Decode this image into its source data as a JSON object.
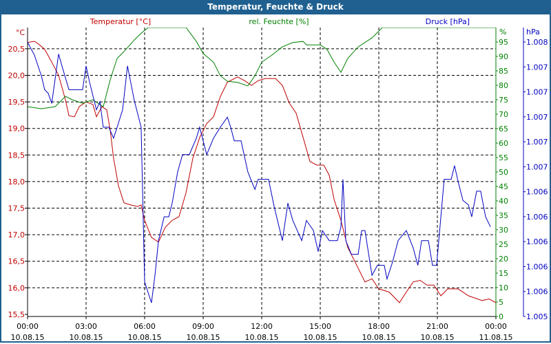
{
  "window_title": "Temperatur, Feuchte & Druck",
  "chart_data": {
    "type": "line",
    "title": "Temperatur, Feuchte & Druck",
    "x_unit": "hours since 10.08.15 00:00",
    "xlim": [
      0,
      24
    ],
    "x_ticks": [
      {
        "h": 0,
        "time": "00:00",
        "date": "10.08.15"
      },
      {
        "h": 3,
        "time": "03:00",
        "date": "10.08.15"
      },
      {
        "h": 6,
        "time": "06:00",
        "date": "10.08.15"
      },
      {
        "h": 9,
        "time": "09:00",
        "date": "10.08.15"
      },
      {
        "h": 12,
        "time": "12:00",
        "date": "10.08.15"
      },
      {
        "h": 15,
        "time": "15:00",
        "date": "10.08.15"
      },
      {
        "h": 18,
        "time": "18:00",
        "date": "10.08.15"
      },
      {
        "h": 21,
        "time": "21:00",
        "date": "10.08.15"
      },
      {
        "h": 24,
        "time": "00:00",
        "date": "11.08.15"
      }
    ],
    "axes": {
      "temperature": {
        "label": "Temperatur [°C]",
        "unit": "°C",
        "color": "#c00000",
        "ylim": [
          15.46,
          20.9
        ],
        "ticks": [
          {
            "v": 20.5,
            "t": "20,5"
          },
          {
            "v": 20,
            "t": "20,0"
          },
          {
            "v": 19.5,
            "t": "19,5"
          },
          {
            "v": 19,
            "t": "19,0"
          },
          {
            "v": 18.5,
            "t": "18,5"
          },
          {
            "v": 18,
            "t": "18,0"
          },
          {
            "v": 17.5,
            "t": "17,5"
          },
          {
            "v": 17,
            "t": "17,0"
          },
          {
            "v": 16.5,
            "t": "16,5"
          },
          {
            "v": 16,
            "t": "16,0"
          },
          {
            "v": 15.5,
            "t": "15,5"
          }
        ]
      },
      "humidity": {
        "label": "rel. Feuchte [%]",
        "unit": "%",
        "color": "#008000",
        "ylim": [
          0,
          100
        ],
        "ticks": [
          "0",
          "5",
          "10",
          "15",
          "20",
          "25",
          "30",
          "35",
          "40",
          "45",
          "50",
          "55",
          "60",
          "65",
          "70",
          "75",
          "80",
          "85",
          "90",
          "95"
        ]
      },
      "pressure": {
        "label": "Druck [hPa]",
        "unit": "hPa",
        "color": "#0000c0",
        "ylim": [
          1005,
          1008.16
        ],
        "ticks": [
          "1.005",
          "1.006",
          "1.006",
          "1.006",
          "1.006",
          "1.006",
          "1.007",
          "1.007",
          "1.007",
          "1.007",
          "1.007",
          "1.008"
        ]
      }
    },
    "grid": true,
    "series": [
      {
        "name": "Temperatur",
        "axis": "temperature",
        "color": "#c00000",
        "points": [
          [
            0,
            20.62
          ],
          [
            0.35,
            20.64
          ],
          [
            0.53,
            20.6
          ],
          [
            0.88,
            20.49
          ],
          [
            1.24,
            20.25
          ],
          [
            1.59,
            20.0
          ],
          [
            1.94,
            19.54
          ],
          [
            2.12,
            19.24
          ],
          [
            2.4,
            19.22
          ],
          [
            2.65,
            19.41
          ],
          [
            3,
            19.5
          ],
          [
            3.35,
            19.45
          ],
          [
            3.53,
            19.22
          ],
          [
            3.81,
            19.41
          ],
          [
            4.06,
            19.35
          ],
          [
            4.24,
            18.96
          ],
          [
            4.41,
            18.44
          ],
          [
            4.66,
            17.92
          ],
          [
            4.94,
            17.6
          ],
          [
            5.29,
            17.56
          ],
          [
            5.65,
            17.53
          ],
          [
            5.82,
            17.56
          ],
          [
            6,
            17.27
          ],
          [
            6.35,
            16.95
          ],
          [
            6.71,
            16.86
          ],
          [
            7.06,
            17.14
          ],
          [
            7.41,
            17.27
          ],
          [
            7.76,
            17.34
          ],
          [
            8.12,
            17.79
          ],
          [
            8.47,
            18.44
          ],
          [
            8.82,
            18.83
          ],
          [
            9.18,
            19.09
          ],
          [
            9.53,
            19.22
          ],
          [
            9.88,
            19.6
          ],
          [
            10.24,
            19.87
          ],
          [
            10.76,
            19.97
          ],
          [
            11.12,
            19.9
          ],
          [
            11.47,
            19.81
          ],
          [
            11.82,
            19.9
          ],
          [
            12.18,
            19.94
          ],
          [
            12.71,
            19.94
          ],
          [
            13.06,
            19.81
          ],
          [
            13.41,
            19.48
          ],
          [
            13.76,
            19.29
          ],
          [
            14.12,
            18.83
          ],
          [
            14.47,
            18.38
          ],
          [
            14.82,
            18.31
          ],
          [
            15.18,
            18.31
          ],
          [
            15.46,
            18.12
          ],
          [
            15.71,
            17.66
          ],
          [
            16.06,
            17.27
          ],
          [
            16.41,
            16.76
          ],
          [
            16.94,
            16.37
          ],
          [
            17.29,
            16.11
          ],
          [
            17.65,
            16.17
          ],
          [
            18,
            15.98
          ],
          [
            18.53,
            15.92
          ],
          [
            19.06,
            15.72
          ],
          [
            19.41,
            15.92
          ],
          [
            19.76,
            16.11
          ],
          [
            20.12,
            16.14
          ],
          [
            20.47,
            16.05
          ],
          [
            20.82,
            16.05
          ],
          [
            21.18,
            15.85
          ],
          [
            21.53,
            15.98
          ],
          [
            22.06,
            15.98
          ],
          [
            22.59,
            15.85
          ],
          [
            23.29,
            15.76
          ],
          [
            23.65,
            15.79
          ],
          [
            24,
            15.72
          ]
        ]
      },
      {
        "name": "rel. Feuchte",
        "axis": "humidity",
        "color": "#008000",
        "points": [
          [
            0,
            72.6
          ],
          [
            0.71,
            71.9
          ],
          [
            1.41,
            72.6
          ],
          [
            1.94,
            76.2
          ],
          [
            2.29,
            75
          ],
          [
            2.82,
            73.8
          ],
          [
            3.35,
            75
          ],
          [
            3.88,
            72.6
          ],
          [
            4.24,
            82
          ],
          [
            4.59,
            89.3
          ],
          [
            4.94,
            91.7
          ],
          [
            5.47,
            95.7
          ],
          [
            5.82,
            98
          ],
          [
            6.18,
            100
          ],
          [
            8.12,
            100
          ],
          [
            8.65,
            95.2
          ],
          [
            9,
            91
          ],
          [
            9.53,
            88
          ],
          [
            9.88,
            83.3
          ],
          [
            10.24,
            81.4
          ],
          [
            10.76,
            81
          ],
          [
            11.29,
            79.8
          ],
          [
            11.65,
            83.3
          ],
          [
            12,
            88
          ],
          [
            12.53,
            90.5
          ],
          [
            13.06,
            93.3
          ],
          [
            13.59,
            94.8
          ],
          [
            14.12,
            95.2
          ],
          [
            14.29,
            94
          ],
          [
            15,
            94
          ],
          [
            15.35,
            92.4
          ],
          [
            15.71,
            88
          ],
          [
            16.06,
            84.5
          ],
          [
            16.41,
            89.3
          ],
          [
            16.94,
            93.3
          ],
          [
            17.65,
            96.4
          ],
          [
            18.18,
            100
          ],
          [
            24,
            100
          ]
        ]
      },
      {
        "name": "Druck",
        "axis": "pressure",
        "color": "#0000c0",
        "points": [
          [
            0,
            1008.0
          ],
          [
            0.35,
            1007.86
          ],
          [
            0.71,
            1007.63
          ],
          [
            0.88,
            1007.48
          ],
          [
            1.06,
            1007.44
          ],
          [
            1.24,
            1007.33
          ],
          [
            1.59,
            1007.87
          ],
          [
            1.76,
            1007.74
          ],
          [
            2.12,
            1007.48
          ],
          [
            2.82,
            1007.48
          ],
          [
            3,
            1007.74
          ],
          [
            3.18,
            1007.56
          ],
          [
            3.53,
            1007.26
          ],
          [
            3.71,
            1007.35
          ],
          [
            3.88,
            1007.07
          ],
          [
            4.16,
            1007.07
          ],
          [
            4.41,
            1006.95
          ],
          [
            4.59,
            1007.07
          ],
          [
            4.87,
            1007.26
          ],
          [
            5.12,
            1007.74
          ],
          [
            5.47,
            1007.36
          ],
          [
            5.82,
            1007.07
          ],
          [
            6,
            1005.38
          ],
          [
            6.18,
            1005.26
          ],
          [
            6.35,
            1005.15
          ],
          [
            6.53,
            1005.45
          ],
          [
            6.71,
            1005.83
          ],
          [
            7,
            1006.09
          ],
          [
            7.24,
            1006.09
          ],
          [
            7.41,
            1006.24
          ],
          [
            7.69,
            1006.58
          ],
          [
            7.94,
            1006.77
          ],
          [
            8.29,
            1006.77
          ],
          [
            8.65,
            1006.95
          ],
          [
            8.82,
            1007.07
          ],
          [
            9.18,
            1006.77
          ],
          [
            9.53,
            1006.95
          ],
          [
            9.88,
            1007.07
          ],
          [
            10.24,
            1007.18
          ],
          [
            10.41,
            1007.07
          ],
          [
            10.59,
            1006.92
          ],
          [
            10.94,
            1006.92
          ],
          [
            11.29,
            1006.58
          ],
          [
            11.65,
            1006.39
          ],
          [
            11.82,
            1006.5
          ],
          [
            12.35,
            1006.5
          ],
          [
            12.64,
            1006.2
          ],
          [
            13.06,
            1005.83
          ],
          [
            13.34,
            1006.24
          ],
          [
            13.59,
            1006.05
          ],
          [
            14.05,
            1005.83
          ],
          [
            14.29,
            1006.05
          ],
          [
            14.65,
            1005.94
          ],
          [
            14.89,
            1005.71
          ],
          [
            15.11,
            1005.94
          ],
          [
            15.46,
            1005.83
          ],
          [
            15.88,
            1005.83
          ],
          [
            16.06,
            1005.98
          ],
          [
            16.16,
            1006.5
          ],
          [
            16.31,
            1005.83
          ],
          [
            16.59,
            1005.68
          ],
          [
            16.94,
            1005.68
          ],
          [
            17.12,
            1005.94
          ],
          [
            17.29,
            1005.94
          ],
          [
            17.65,
            1005.45
          ],
          [
            17.93,
            1005.56
          ],
          [
            18.28,
            1005.56
          ],
          [
            18.42,
            1005.41
          ],
          [
            18.71,
            1005.6
          ],
          [
            18.99,
            1005.83
          ],
          [
            19.41,
            1005.94
          ],
          [
            19.76,
            1005.75
          ],
          [
            20,
            1005.56
          ],
          [
            20.19,
            1005.83
          ],
          [
            20.54,
            1005.83
          ],
          [
            20.75,
            1005.56
          ],
          [
            20.96,
            1005.56
          ],
          [
            21.18,
            1006.09
          ],
          [
            21.35,
            1006.5
          ],
          [
            21.71,
            1006.5
          ],
          [
            21.88,
            1006.65
          ],
          [
            22.06,
            1006.48
          ],
          [
            22.31,
            1006.27
          ],
          [
            22.59,
            1006.22
          ],
          [
            22.76,
            1006.09
          ],
          [
            23.01,
            1006.37
          ],
          [
            23.22,
            1006.37
          ],
          [
            23.47,
            1006.09
          ],
          [
            23.72,
            1005.98
          ]
        ]
      }
    ]
  }
}
